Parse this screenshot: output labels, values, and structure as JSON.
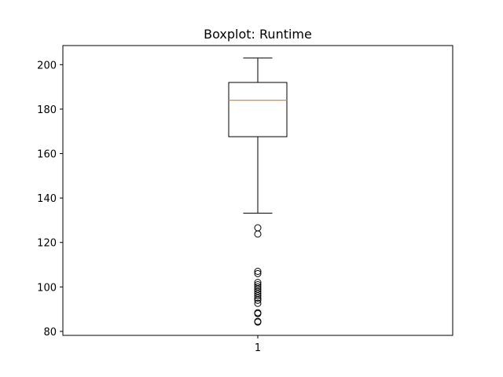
{
  "chart_data": {
    "type": "boxplot",
    "title": "Boxplot: Runtime",
    "xlabel": "",
    "ylabel": "",
    "categories": [
      "1"
    ],
    "ylim": [
      78.2,
      208.6
    ],
    "yticks": [
      80,
      100,
      120,
      140,
      160,
      180,
      200
    ],
    "grid": false,
    "boxes": [
      {
        "category": "1",
        "whisker_low": 133.2,
        "q1": 167.6,
        "median": 184.0,
        "q3": 192.0,
        "whisker_high": 203.0,
        "outliers": [
          126.6,
          123.8,
          107.0,
          106.0,
          102.0,
          101.0,
          100.0,
          99.0,
          98.0,
          97.0,
          96.0,
          95.0,
          94.0,
          92.6,
          88.4,
          88.0,
          84.5,
          84.2
        ]
      }
    ],
    "colors": {
      "box": "#000000",
      "median": "#ff7f0e",
      "outlier": "#000000"
    }
  }
}
